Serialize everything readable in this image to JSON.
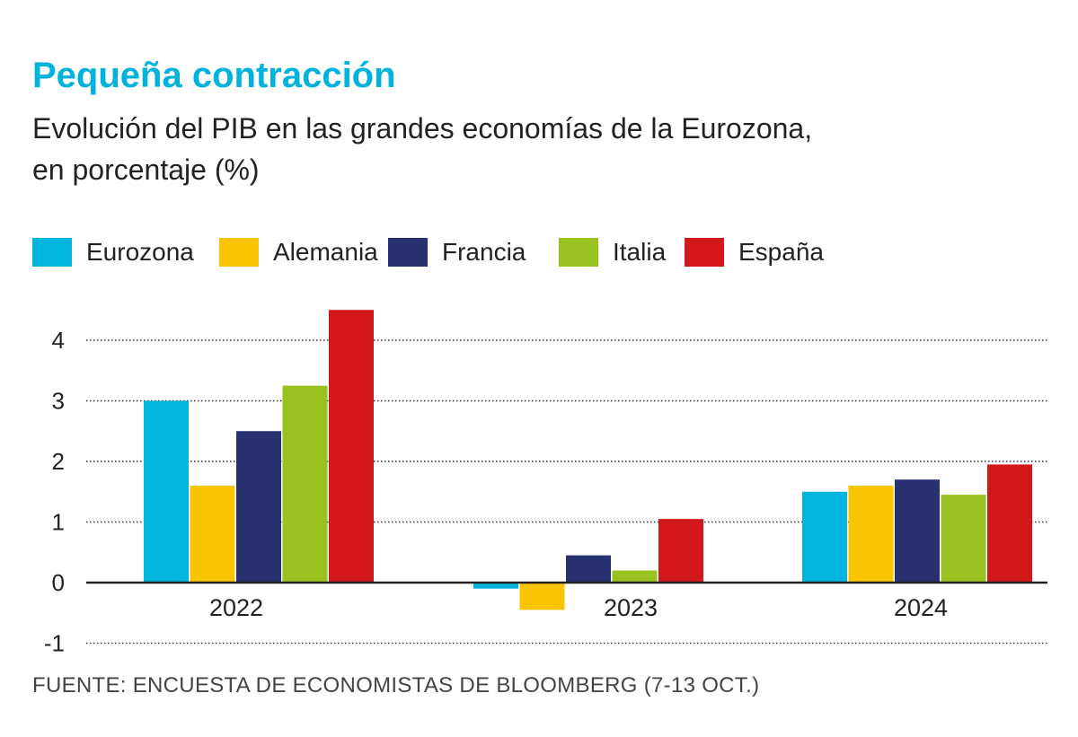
{
  "title": "Pequeña contracción",
  "subtitle_line1": "Evolución del PIB en las grandes economías de la Eurozona,",
  "subtitle_line2": "en porcentaje (%)",
  "source": "FUENTE: ENCUESTA DE ECONOMISTAS DE BLOOMBERG (7-13 OCT.)",
  "colors": {
    "title": "#00b3dc",
    "Eurozona": "#00b5dd",
    "Alemania": "#fbc400",
    "Francia": "#27316f",
    "Italia": "#97c21f",
    "España": "#d3181c"
  },
  "chart_data": {
    "type": "bar",
    "categories": [
      "2022",
      "2023",
      "2024"
    ],
    "series": [
      {
        "name": "Eurozona",
        "values": [
          3.0,
          -0.1,
          1.5
        ]
      },
      {
        "name": "Alemania",
        "values": [
          1.6,
          -0.45,
          1.6
        ]
      },
      {
        "name": "Francia",
        "values": [
          2.5,
          0.45,
          1.7
        ]
      },
      {
        "name": "Italia",
        "values": [
          3.25,
          0.2,
          1.45
        ]
      },
      {
        "name": "España",
        "values": [
          4.5,
          1.05,
          1.95
        ]
      }
    ],
    "yticks": [
      "-1",
      "0",
      "1",
      "2",
      "3",
      "4"
    ],
    "ylim": [
      -1,
      4.5
    ],
    "grid": true,
    "legend_position": "top"
  }
}
